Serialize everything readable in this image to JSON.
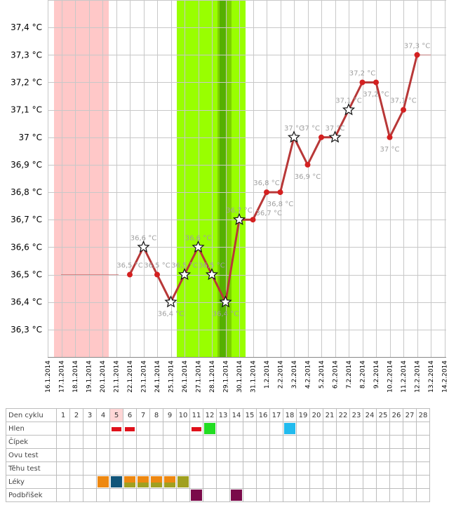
{
  "chart_data": {
    "type": "line",
    "x_dates": [
      "16.1.2014",
      "17.1.2014",
      "18.1.2014",
      "19.1.2014",
      "20.1.2014",
      "21.1.2014",
      "22.1.2014",
      "23.1.2014",
      "24.1.2014",
      "25.1.2014",
      "26.1.2014",
      "27.1.2014",
      "28.1.2014",
      "29.1.2014",
      "30.1.2014",
      "31.1.2014",
      "1.2.2014",
      "2.2.2014",
      "3.2.2014",
      "4.2.2014",
      "5.2.2014",
      "6.2.2014",
      "7.2.2014",
      "8.2.2014",
      "9.2.2014",
      "10.2.2014",
      "11.2.2014",
      "12.2.2014",
      "13.2.2014",
      "14.2.2014"
    ],
    "y_ticks": [
      "36,3 °C",
      "36,4 °C",
      "36,5 °C",
      "36,6 °C",
      "36,7 °C",
      "36,8 °C",
      "36,9 °C",
      "37 °C",
      "37,1 °C",
      "37,2 °C",
      "37,3 °C",
      "37,4 °C"
    ],
    "ylim": [
      36.2,
      37.5
    ],
    "grid": true,
    "line_color": "#b83838",
    "marker_color": "#d42020",
    "baseline_value": 36.5,
    "baseline_from": "17.1.2014",
    "baseline_to": "21.1.2014",
    "tail_value": 37.3,
    "tail_from": "12.2.2014",
    "tail_to": "13.2.2014",
    "points": [
      {
        "date": "22.1.2014",
        "value": 36.5,
        "marker": "dot",
        "label": "36,5 °C",
        "label_pos": "above"
      },
      {
        "date": "23.1.2014",
        "value": 36.6,
        "marker": "star",
        "label": "36,6 °C",
        "label_pos": "above"
      },
      {
        "date": "24.1.2014",
        "value": 36.5,
        "marker": "dot",
        "label": "36,5 °C",
        "label_pos": "above"
      },
      {
        "date": "25.1.2014",
        "value": 36.4,
        "marker": "star",
        "label": "36,4 °C",
        "label_pos": "below"
      },
      {
        "date": "26.1.2014",
        "value": 36.5,
        "marker": "star",
        "label": "36,5 °C",
        "label_pos": "above"
      },
      {
        "date": "27.1.2014",
        "value": 36.6,
        "marker": "star",
        "label": "36,6 °C",
        "label_pos": "above"
      },
      {
        "date": "28.1.2014",
        "value": 36.5,
        "marker": "star",
        "label": "36,5 °C",
        "label_pos": "above"
      },
      {
        "date": "29.1.2014",
        "value": 36.4,
        "marker": "star",
        "label": "36,4 °C",
        "label_pos": "below"
      },
      {
        "date": "30.1.2014",
        "value": 36.7,
        "marker": "star",
        "label": "36,7 °C",
        "label_pos": "above"
      },
      {
        "date": "31.1.2014",
        "value": 36.7,
        "marker": "dot",
        "label": "36,7 °C",
        "label_pos": "below-right"
      },
      {
        "date": "1.2.2014",
        "value": 36.8,
        "marker": "dot",
        "label": "36,8 °C",
        "label_pos": "above"
      },
      {
        "date": "2.2.2014",
        "value": 36.8,
        "marker": "dot",
        "label": "36,8 °C",
        "label_pos": "below"
      },
      {
        "date": "3.2.2014",
        "value": 37.0,
        "marker": "star",
        "label": "37 °C",
        "label_pos": "above"
      },
      {
        "date": "4.2.2014",
        "value": 36.9,
        "marker": "dot",
        "label": "36,9 °C",
        "label_pos": "below"
      },
      {
        "date": "5.2.2014",
        "value": 37.0,
        "marker": "dot",
        "label": "37 °C",
        "label_pos": "above-left"
      },
      {
        "date": "6.2.2014",
        "value": 37.0,
        "marker": "star",
        "label": "37 °C",
        "label_pos": "above"
      },
      {
        "date": "7.2.2014",
        "value": 37.1,
        "marker": "star",
        "label": "37,1 °C",
        "label_pos": "above"
      },
      {
        "date": "8.2.2014",
        "value": 37.2,
        "marker": "dot",
        "label": "37,2 °C",
        "label_pos": "above"
      },
      {
        "date": "9.2.2014",
        "value": 37.2,
        "marker": "dot",
        "label": "37,2 °C",
        "label_pos": "below"
      },
      {
        "date": "10.2.2014",
        "value": 37.0,
        "marker": "dot",
        "label": "37 °C",
        "label_pos": "below"
      },
      {
        "date": "11.2.2014",
        "value": 37.1,
        "marker": "dot",
        "label": "37,1 °C",
        "label_pos": "above"
      },
      {
        "date": "12.2.2014",
        "value": 37.3,
        "marker": "dot",
        "label": "37,3 °C",
        "label_pos": "above"
      }
    ],
    "bands": [
      {
        "from": "17.1.2014",
        "to": "21.1.2014",
        "color": "#ffc8c8"
      },
      {
        "from": "26.1.2014",
        "to": "31.1.2014",
        "color": "#99ff00"
      },
      {
        "from": "29.1.2014",
        "to": "30.1.2014",
        "color": "#7dd000"
      },
      {
        "from": "29.1.2014",
        "to": "29.7.2014",
        "color": "#55b000"
      }
    ]
  },
  "cycle_table": {
    "days": [
      "1",
      "2",
      "3",
      "4",
      "5",
      "6",
      "7",
      "8",
      "9",
      "10",
      "11",
      "12",
      "13",
      "14",
      "15",
      "16",
      "17",
      "18",
      "19",
      "20",
      "21",
      "22",
      "23",
      "24",
      "25",
      "26",
      "27",
      "28"
    ],
    "today_day": 5,
    "rows": [
      {
        "label": "Den cyklu"
      },
      {
        "label": "Hlen"
      },
      {
        "label": "Čípek"
      },
      {
        "label": "Ovu test"
      },
      {
        "label": "Těhu test"
      },
      {
        "label": "Léky"
      },
      {
        "label": "Podbřišek"
      }
    ],
    "marks": [
      {
        "row": 1,
        "day": 5,
        "style": "bar",
        "color": "#e0101a"
      },
      {
        "row": 1,
        "day": 6,
        "style": "bar",
        "color": "#e0101a"
      },
      {
        "row": 1,
        "day": 11,
        "style": "bar",
        "color": "#e0101a"
      },
      {
        "row": 1,
        "day": 12,
        "style": "block",
        "color": "#22dd22"
      },
      {
        "row": 1,
        "day": 18,
        "style": "block",
        "color": "#22bbee"
      },
      {
        "row": 5,
        "day": 4,
        "style": "block",
        "color": "#ee8811"
      },
      {
        "row": 5,
        "day": 5,
        "style": "block",
        "color": "#11557a"
      },
      {
        "row": 5,
        "day": 6,
        "style": "split",
        "color": "#ee8811",
        "color2": "#a0a020"
      },
      {
        "row": 5,
        "day": 7,
        "style": "split",
        "color": "#ee8811",
        "color2": "#a0a020"
      },
      {
        "row": 5,
        "day": 8,
        "style": "split",
        "color": "#ee8811",
        "color2": "#a0a020"
      },
      {
        "row": 5,
        "day": 9,
        "style": "split",
        "color": "#ee8811",
        "color2": "#a0a020"
      },
      {
        "row": 5,
        "day": 10,
        "style": "block",
        "color": "#a0a020"
      },
      {
        "row": 6,
        "day": 11,
        "style": "block",
        "color": "#7a0a4a"
      },
      {
        "row": 6,
        "day": 14,
        "style": "block",
        "color": "#7a0a4a"
      }
    ]
  }
}
